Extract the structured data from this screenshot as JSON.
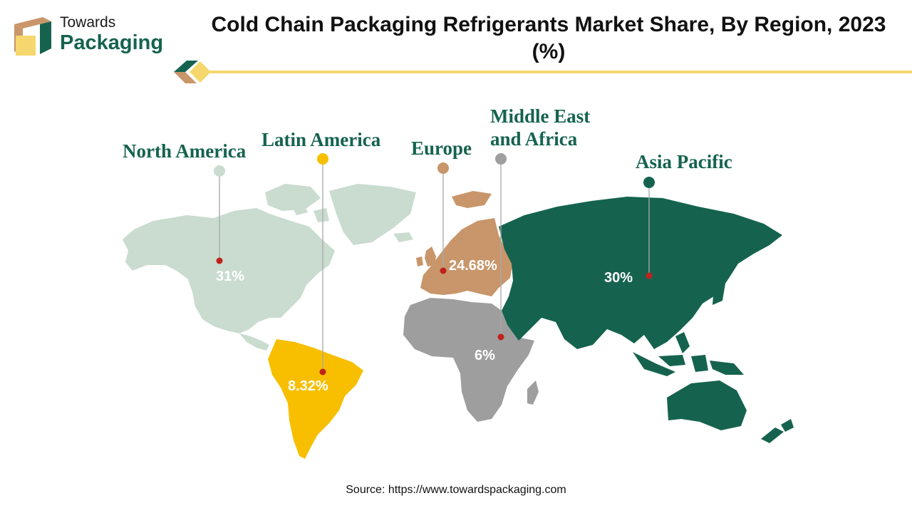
{
  "logo": {
    "line1": "Towards",
    "line2": "Packaging"
  },
  "title": "Cold Chain Packaging Refrigerants Market Share, By Region, 2023 (%)",
  "source": "Source: https://www.towardspackaging.com",
  "colors": {
    "brand_green": "#15634f",
    "accent_yellow": "#f5d76e",
    "north_america": "#c9dccf",
    "latin_america": "#f7bf00",
    "europe": "#c8966a",
    "middle_east_africa": "#9e9e9e",
    "asia_pacific": "#15634f",
    "marker_dot": "#c0221b"
  },
  "regions": [
    {
      "id": "north_america",
      "name": "North America",
      "value": "31%"
    },
    {
      "id": "latin_america",
      "name": "Latin America",
      "value": "8.32%"
    },
    {
      "id": "europe",
      "name": "Europe",
      "value": "24.68%"
    },
    {
      "id": "middle_east_africa",
      "name": "Middle East and Africa",
      "value": "6%"
    },
    {
      "id": "asia_pacific",
      "name": "Asia Pacific",
      "value": "30%"
    }
  ]
}
